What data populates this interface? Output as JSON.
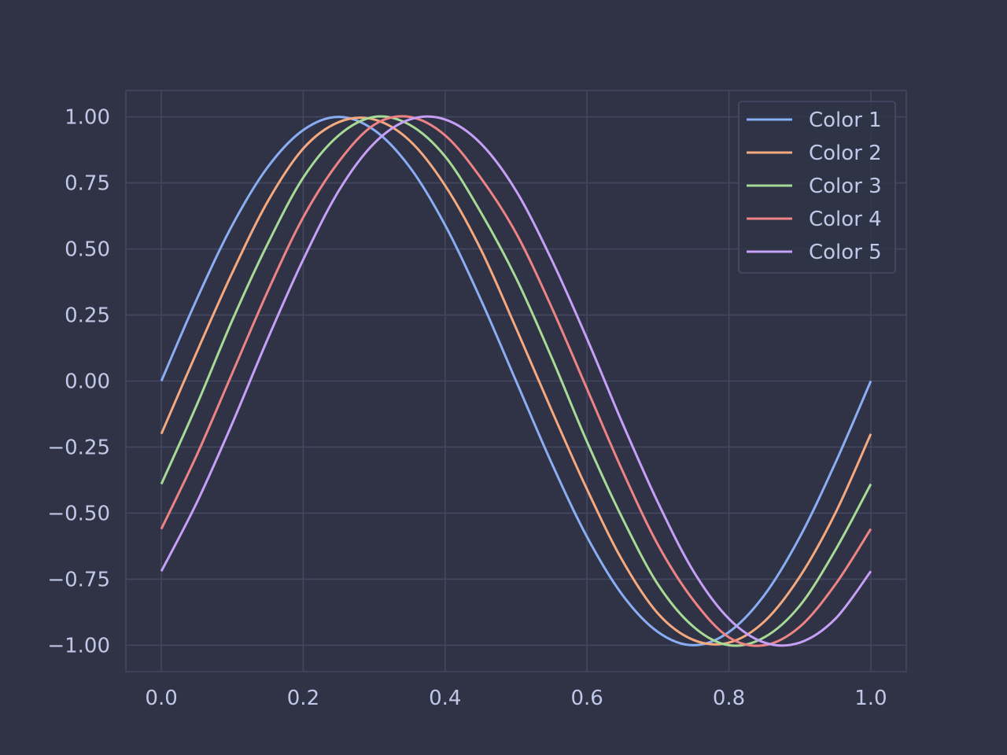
{
  "chart_data": {
    "type": "line",
    "title": "",
    "xlabel": "",
    "ylabel": "",
    "xlim": [
      -0.05,
      1.05
    ],
    "ylim": [
      -1.1,
      1.1
    ],
    "x_ticks": [
      0.0,
      0.2,
      0.4,
      0.6,
      0.8,
      1.0
    ],
    "x_tick_labels": [
      "0.0",
      "0.2",
      "0.4",
      "0.6",
      "0.8",
      "1.0"
    ],
    "y_ticks": [
      1.0,
      0.75,
      0.5,
      0.25,
      0.0,
      -0.25,
      -0.5,
      -0.75,
      -1.0
    ],
    "y_tick_labels": [
      "1.00",
      "0.75",
      "0.50",
      "0.25",
      "0.00",
      "−0.25",
      "−0.50",
      "−0.75",
      "−1.00"
    ],
    "grid": true,
    "legend_position": "top-right",
    "x": [
      0.0,
      0.05,
      0.1,
      0.15,
      0.2,
      0.25,
      0.3,
      0.35,
      0.4,
      0.45,
      0.5,
      0.55,
      0.6,
      0.65,
      0.7,
      0.75,
      0.8,
      0.85,
      0.9,
      0.95,
      1.0
    ],
    "series": [
      {
        "name": "Color 1",
        "color": "#8aadf4",
        "values": [
          0.0,
          0.31,
          0.59,
          0.81,
          0.95,
          1.0,
          0.95,
          0.81,
          0.59,
          0.31,
          0.0,
          -0.31,
          -0.59,
          -0.81,
          -0.95,
          -1.0,
          -0.95,
          -0.81,
          -0.59,
          -0.31,
          0.0
        ]
      },
      {
        "name": "Color 2",
        "color": "#f5a97f",
        "values": [
          -0.2,
          0.11,
          0.41,
          0.68,
          0.88,
          0.98,
          0.99,
          0.91,
          0.74,
          0.5,
          0.2,
          -0.11,
          -0.41,
          -0.68,
          -0.88,
          -0.98,
          -0.99,
          -0.91,
          -0.74,
          -0.5,
          -0.2
        ]
      },
      {
        "name": "Color 3",
        "color": "#a6da95",
        "values": [
          -0.39,
          -0.09,
          0.23,
          0.52,
          0.77,
          0.93,
          1.0,
          0.97,
          0.85,
          0.64,
          0.39,
          0.09,
          -0.23,
          -0.52,
          -0.77,
          -0.93,
          -1.0,
          -0.97,
          -0.85,
          -0.64,
          -0.39
        ]
      },
      {
        "name": "Color 4",
        "color": "#ee8385",
        "values": [
          -0.56,
          -0.28,
          0.03,
          0.34,
          0.62,
          0.83,
          0.97,
          1.0,
          0.93,
          0.77,
          0.56,
          0.28,
          -0.03,
          -0.34,
          -0.62,
          -0.83,
          -0.97,
          -1.0,
          -0.93,
          -0.77,
          -0.56
        ]
      },
      {
        "name": "Color 5",
        "color": "#c6a0f6",
        "values": [
          -0.72,
          -0.46,
          -0.16,
          0.16,
          0.46,
          0.72,
          0.9,
          0.99,
          0.99,
          0.9,
          0.72,
          0.46,
          0.16,
          -0.16,
          -0.46,
          -0.72,
          -0.9,
          -0.99,
          -0.99,
          -0.9,
          -0.72
        ]
      }
    ]
  },
  "colors": {
    "background": "#303346",
    "grid": "#434760",
    "frame": "#434760",
    "text": "#c0c8e8",
    "legend_bg": "#303346",
    "legend_border": "#474b64"
  }
}
